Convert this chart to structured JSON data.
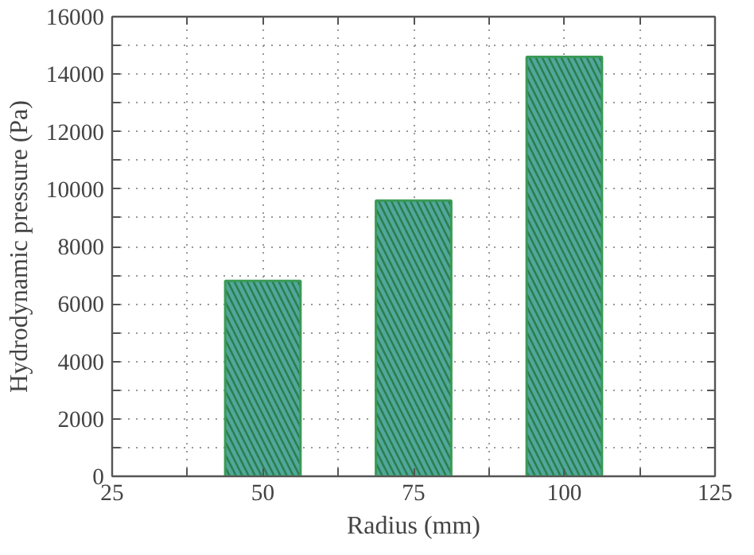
{
  "chart_data": {
    "type": "bar",
    "xlabel": "Radius (mm)",
    "ylabel": "Hydrodynamic pressure (Pa)",
    "x": [
      50,
      75,
      100
    ],
    "values": [
      6800,
      9600,
      14600
    ],
    "color": "#4fa89b",
    "xlim": [
      25,
      125
    ],
    "xticks": [
      25,
      {
        "value": 37.5,
        "label": null
      },
      50,
      {
        "value": 62.5,
        "label": null
      },
      75,
      {
        "value": 87.5,
        "label": null
      },
      100,
      {
        "value": 112.5,
        "label": null
      },
      125
    ],
    "ylim": [
      0,
      16000
    ],
    "yticks": [
      0,
      {
        "value": 1000,
        "label": null
      },
      2000,
      {
        "value": 3000,
        "label": null
      },
      4000,
      {
        "value": 5000,
        "label": null
      },
      6000,
      {
        "value": 7000,
        "label": null
      },
      8000,
      {
        "value": 9000,
        "label": null
      },
      10000,
      {
        "value": 11000,
        "label": null
      },
      12000,
      {
        "value": 13000,
        "label": null
      },
      14000,
      {
        "value": 15000,
        "label": null
      },
      16000
    ],
    "grid": true
  }
}
